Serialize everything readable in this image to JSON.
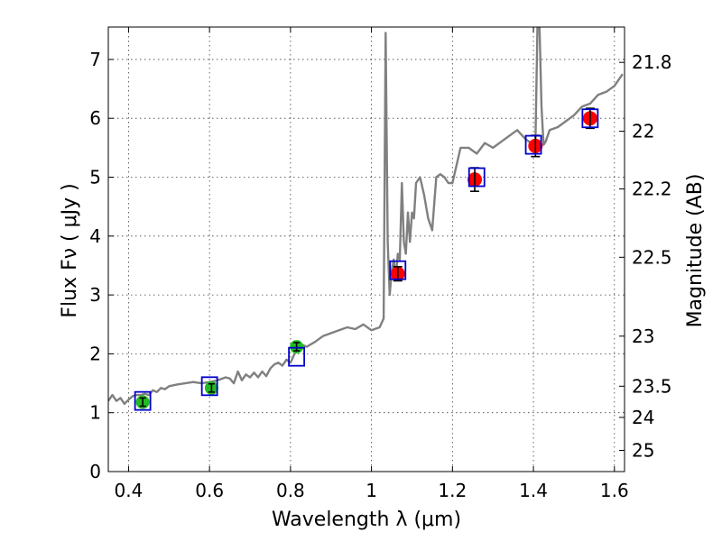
{
  "chart_data": {
    "type": "scatter",
    "title": "",
    "xlabel": "Wavelength  λ (μm)",
    "ylabel": "Flux  Fν  ( μJy )",
    "y2label": "Magnitude (AB)",
    "xlim": [
      0.35,
      1.625
    ],
    "ylim": [
      0,
      7.55
    ],
    "grid": true,
    "xticks": [
      0.4,
      0.6,
      0.8,
      1.0,
      1.2,
      1.4,
      1.6
    ],
    "xtick_labels": [
      "0.4",
      "0.6",
      "0.8",
      "1",
      "1.2",
      "1.4",
      "1.6"
    ],
    "yticks": [
      0,
      1,
      2,
      3,
      4,
      5,
      6,
      7
    ],
    "ytick_labels": [
      "0",
      "1",
      "2",
      "3",
      "4",
      "5",
      "6",
      "7"
    ],
    "y2ticks": [
      {
        "label": "21.8",
        "flux": 6.95
      },
      {
        "label": "22",
        "flux": 5.78
      },
      {
        "label": "22.2",
        "flux": 4.8
      },
      {
        "label": "22.5",
        "flux": 3.64
      },
      {
        "label": "23",
        "flux": 2.3
      },
      {
        "label": "23.5",
        "flux": 1.45
      },
      {
        "label": "24",
        "flux": 0.92
      },
      {
        "label": "25",
        "flux": 0.36
      }
    ],
    "colors": {
      "model": "#808080",
      "optical_points": "#22bb22",
      "nir_points": "#ff0000",
      "model_boxes": "#0000cc",
      "errorbars": "#000000"
    },
    "series": [
      {
        "name": "model spectrum",
        "kind": "line",
        "x": [
          0.35,
          0.36,
          0.37,
          0.38,
          0.39,
          0.4,
          0.41,
          0.42,
          0.43,
          0.44,
          0.45,
          0.46,
          0.47,
          0.48,
          0.49,
          0.5,
          0.52,
          0.54,
          0.56,
          0.58,
          0.6,
          0.62,
          0.64,
          0.65,
          0.66,
          0.67,
          0.68,
          0.69,
          0.7,
          0.71,
          0.72,
          0.73,
          0.74,
          0.75,
          0.76,
          0.77,
          0.78,
          0.79,
          0.8,
          0.81,
          0.82,
          0.83,
          0.84,
          0.86,
          0.88,
          0.9,
          0.92,
          0.94,
          0.96,
          0.98,
          1.0,
          1.02,
          1.03,
          1.035,
          1.04,
          1.045,
          1.05,
          1.055,
          1.06,
          1.065,
          1.07,
          1.075,
          1.08,
          1.085,
          1.09,
          1.095,
          1.1,
          1.105,
          1.11,
          1.12,
          1.13,
          1.14,
          1.15,
          1.16,
          1.17,
          1.18,
          1.19,
          1.2,
          1.21,
          1.22,
          1.24,
          1.26,
          1.28,
          1.3,
          1.32,
          1.34,
          1.36,
          1.38,
          1.4,
          1.405,
          1.41,
          1.415,
          1.42,
          1.425,
          1.43,
          1.44,
          1.46,
          1.48,
          1.5,
          1.52,
          1.54,
          1.56,
          1.58,
          1.6,
          1.62
        ],
        "y": [
          1.2,
          1.3,
          1.2,
          1.25,
          1.15,
          1.22,
          1.28,
          1.3,
          1.3,
          1.32,
          1.3,
          1.38,
          1.35,
          1.42,
          1.4,
          1.45,
          1.48,
          1.5,
          1.52,
          1.5,
          1.52,
          1.55,
          1.6,
          1.58,
          1.5,
          1.7,
          1.55,
          1.65,
          1.6,
          1.68,
          1.6,
          1.7,
          1.62,
          1.75,
          1.82,
          1.85,
          1.8,
          1.9,
          1.85,
          2.0,
          2.08,
          2.15,
          2.12,
          2.2,
          2.3,
          2.35,
          2.4,
          2.45,
          2.42,
          2.5,
          2.4,
          2.45,
          2.6,
          7.45,
          3.9,
          3.0,
          3.4,
          3.6,
          3.3,
          3.7,
          3.6,
          4.9,
          3.9,
          3.7,
          4.4,
          3.9,
          4.4,
          4.3,
          4.9,
          5.0,
          4.7,
          4.3,
          4.1,
          5.0,
          5.05,
          5.0,
          4.9,
          4.9,
          5.2,
          5.5,
          5.5,
          5.4,
          5.58,
          5.5,
          5.6,
          5.7,
          5.8,
          5.65,
          5.55,
          5.6,
          7.55,
          7.55,
          6.2,
          5.55,
          5.6,
          5.8,
          5.85,
          5.95,
          6.05,
          6.2,
          6.25,
          6.4,
          6.45,
          6.55,
          6.75
        ]
      },
      {
        "name": "optical photometry",
        "kind": "points",
        "x": [
          0.435,
          0.605,
          0.815
        ],
        "y": [
          1.18,
          1.42,
          2.12
        ],
        "yerr": [
          0.07,
          0.07,
          0.07
        ]
      },
      {
        "name": "NIR photometry",
        "kind": "points",
        "x": [
          1.065,
          1.255,
          1.405,
          1.54
        ],
        "y": [
          3.36,
          4.96,
          5.53,
          6.0
        ],
        "yerr": [
          0.12,
          0.2,
          0.18,
          0.17
        ]
      },
      {
        "name": "model synthetic photometry",
        "kind": "boxes",
        "x": [
          0.435,
          0.6,
          0.815,
          1.065,
          1.26,
          1.4,
          1.54
        ],
        "y": [
          1.2,
          1.45,
          1.95,
          3.42,
          5.0,
          5.55,
          6.0
        ]
      }
    ]
  }
}
